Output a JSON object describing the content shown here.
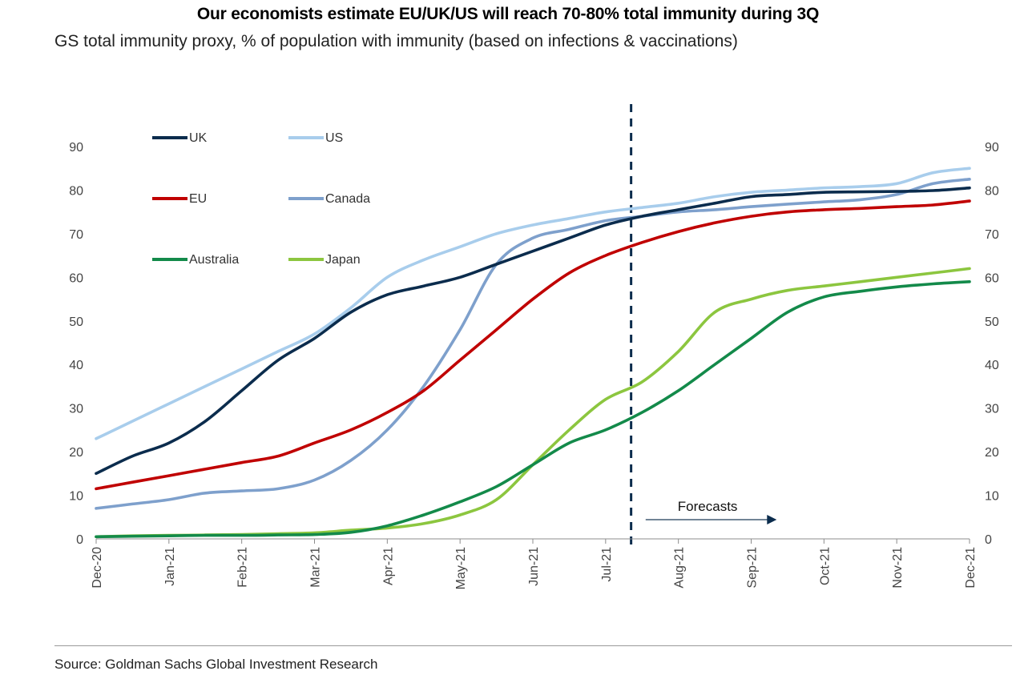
{
  "header": {
    "title": "Our economists estimate EU/UK/US will reach 70-80% total immunity during 3Q",
    "subtitle": "GS total immunity proxy, % of population with immunity (based on infections & vaccinations)"
  },
  "footer": {
    "source": "Source: Goldman Sachs Global Investment Research"
  },
  "chart_data": {
    "type": "line",
    "title": "Our economists estimate EU/UK/US will reach 70-80% total immunity during 3Q",
    "subtitle": "GS total immunity proxy, % of population with immunity (based on infections & vaccinations)",
    "xlabel": "",
    "ylabel": "",
    "ylim": [
      0,
      90
    ],
    "y_ticks": [
      0,
      10,
      20,
      30,
      40,
      50,
      60,
      70,
      80,
      90
    ],
    "x_months": [
      "Dec-20",
      "Jan-21",
      "Feb-21",
      "Mar-21",
      "Apr-21",
      "May-21",
      "Jun-21",
      "Jul-21",
      "Aug-21",
      "Sep-21",
      "Oct-21",
      "Nov-21",
      "Dec-21"
    ],
    "x_month_positions": [
      0,
      1,
      2,
      3,
      4,
      5,
      6,
      7,
      8,
      9,
      10,
      11,
      12
    ],
    "grid": false,
    "legend_position": "top-left",
    "forecast_start_month": 7.35,
    "annotation": {
      "text": "Forecasts",
      "from_month": 7.55,
      "to_month": 9.35
    },
    "series": [
      {
        "name": "UK",
        "color": "#0b2c4d",
        "x": [
          0,
          0.5,
          1,
          1.5,
          2,
          2.5,
          3,
          3.5,
          4,
          4.5,
          5,
          5.5,
          6,
          6.5,
          7,
          7.5,
          8,
          8.5,
          9,
          9.5,
          10,
          10.5,
          11,
          11.5,
          12
        ],
        "y": [
          15,
          19,
          22,
          27,
          34,
          41,
          46,
          52,
          56,
          58,
          60,
          63,
          66,
          69,
          72,
          74,
          75.5,
          77,
          78.5,
          79,
          79.5,
          79.6,
          79.7,
          79.9,
          80.5
        ]
      },
      {
        "name": "US",
        "color": "#a8cdec",
        "x": [
          0,
          0.5,
          1,
          1.5,
          2,
          2.5,
          3,
          3.5,
          4,
          4.5,
          5,
          5.5,
          6,
          6.5,
          7,
          7.5,
          8,
          8.5,
          9,
          9.5,
          10,
          10.5,
          11,
          11.5,
          12
        ],
        "y": [
          23,
          27,
          31,
          35,
          39,
          43,
          47,
          53,
          60,
          64,
          67,
          70,
          72,
          73.5,
          75,
          76,
          77,
          78.5,
          79.5,
          80,
          80.5,
          80.8,
          81.5,
          84,
          85
        ]
      },
      {
        "name": "EU",
        "color": "#c00000",
        "x": [
          0,
          0.5,
          1,
          1.5,
          2,
          2.5,
          3,
          3.5,
          4,
          4.5,
          5,
          5.5,
          6,
          6.5,
          7,
          7.5,
          8,
          8.5,
          9,
          9.5,
          10,
          10.5,
          11,
          11.5,
          12
        ],
        "y": [
          11.5,
          13,
          14.5,
          16,
          17.5,
          19,
          22,
          25,
          29,
          34,
          41,
          48,
          55,
          61,
          65,
          68,
          70.5,
          72.5,
          74,
          75,
          75.5,
          75.8,
          76.2,
          76.6,
          77.5
        ]
      },
      {
        "name": "Canada",
        "color": "#7ea0cc",
        "x": [
          0,
          0.5,
          1,
          1.5,
          2,
          2.5,
          3,
          3.5,
          4,
          4.5,
          5,
          5.5,
          6,
          6.5,
          7,
          7.5,
          8,
          8.5,
          9,
          9.5,
          10,
          10.5,
          11,
          11.5,
          12
        ],
        "y": [
          7,
          8,
          9,
          10.5,
          11,
          11.5,
          13.5,
          18,
          25,
          35,
          48,
          63,
          69,
          71,
          73,
          74,
          75,
          75.5,
          76.2,
          76.8,
          77.3,
          77.8,
          79,
          81.5,
          82.5
        ]
      },
      {
        "name": "Australia",
        "color": "#138a4a",
        "x": [
          0,
          0.5,
          1,
          1.5,
          2,
          2.5,
          3,
          3.5,
          4,
          4.5,
          5,
          5.5,
          6,
          6.5,
          7,
          7.5,
          8,
          8.5,
          9,
          9.5,
          10,
          10.5,
          11,
          11.5,
          12
        ],
        "y": [
          0.5,
          0.6,
          0.7,
          0.8,
          0.8,
          0.9,
          1.0,
          1.5,
          3,
          5.5,
          8.5,
          12,
          17,
          22,
          25,
          29,
          34,
          40,
          46,
          52,
          55.5,
          56.8,
          57.8,
          58.5,
          59
        ]
      },
      {
        "name": "Japan",
        "color": "#8cc63f",
        "x": [
          0,
          0.5,
          1,
          1.5,
          2,
          2.5,
          3,
          3.5,
          4,
          4.5,
          5,
          5.5,
          6,
          6.5,
          7,
          7.5,
          8,
          8.5,
          9,
          9.5,
          10,
          10.5,
          11,
          11.5,
          12
        ],
        "y": [
          0.5,
          0.7,
          0.8,
          0.9,
          1.0,
          1.2,
          1.4,
          2.0,
          2.5,
          3.5,
          5.5,
          9,
          17,
          25,
          32,
          36,
          43,
          52,
          55,
          57,
          58,
          59,
          60,
          61,
          62
        ]
      }
    ]
  }
}
